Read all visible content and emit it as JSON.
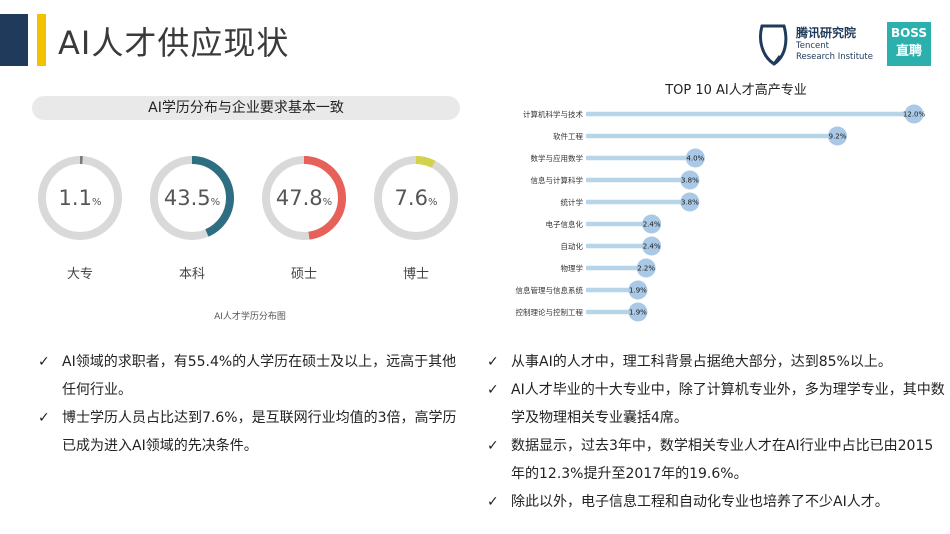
{
  "page": {
    "title": "AI人才供应现状"
  },
  "logos": {
    "tencent_name": "腾讯研究院",
    "tencent_sub1": "Tencent",
    "tencent_sub2": "Research Institute",
    "boss_line1": "BOSS",
    "boss_line2": "直聘"
  },
  "education": {
    "header": "AI学历分布与企业要求基本一致",
    "caption": "AI人才学历分布图",
    "unit": "%",
    "items": [
      {
        "label": "大专",
        "value_text": "1.1",
        "value": 1.1,
        "color": "#7a7a7a"
      },
      {
        "label": "本科",
        "value_text": "43.5",
        "value": 43.5,
        "color": "#2e6e82"
      },
      {
        "label": "硕士",
        "value_text": "47.8",
        "value": 47.8,
        "color": "#e8605a"
      },
      {
        "label": "博士",
        "value_text": "7.6",
        "value": 7.6,
        "color": "#d4d24a"
      }
    ],
    "track_color": "#d9d9d9"
  },
  "chart_data": {
    "type": "bar",
    "orientation": "horizontal",
    "title": "TOP 10 AI人才高产专业",
    "categories": [
      "计算机科学与技术",
      "软件工程",
      "数学与应用数学",
      "信息与计算科学",
      "统计学",
      "电子信息化",
      "自动化",
      "物理学",
      "信息管理与信息系统",
      "控制理论与控制工程"
    ],
    "values": [
      12.0,
      9.2,
      4.0,
      3.8,
      3.8,
      2.4,
      2.4,
      2.2,
      1.9,
      1.9
    ],
    "value_labels": [
      "12.0%",
      "9.2%",
      "4.0%",
      "3.8%",
      "3.8%",
      "2.4%",
      "2.4%",
      "2.2%",
      "1.9%",
      "1.9%"
    ],
    "xlim": [
      0,
      12.0
    ],
    "bar_color": "#b8d4e8",
    "marker_color": "#a9c9e6",
    "grid": false
  },
  "bullets_left": [
    "AI领域的求职者，有55.4%的人学历在硕士及以上，远高于其他任何行业。",
    "博士学历人员占比达到7.6%，是互联网行业均值的3倍，高学历已成为进入AI领域的先决条件。"
  ],
  "bullets_right": [
    "从事AI的人才中，理工科背景占据绝大部分，达到85%以上。",
    "AI人才毕业的十大专业中，除了计算机专业外，多为理学专业，其中数学及物理相关专业囊括4席。",
    "数据显示，过去3年中，数学相关专业人才在AI行业中占比已由2015年的12.3%提升至2017年的19.6%。",
    "除此以外，电子信息工程和自动化专业也培养了不少AI人才。"
  ],
  "check_glyph": "✓"
}
